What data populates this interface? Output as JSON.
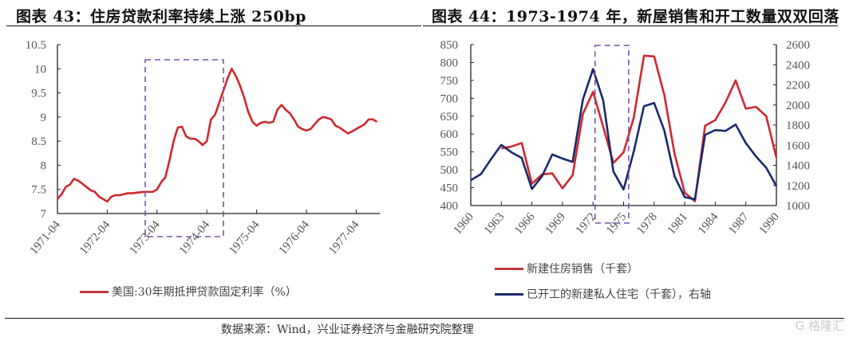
{
  "footer": {
    "source": "数据来源：Wind，兴业证券经济与金融研究院整理",
    "watermark_logo": "格隆汇"
  },
  "colors": {
    "red": "#d0282e",
    "blue": "#1a2a6c",
    "box": "#7b52ab"
  },
  "chart_data": [
    {
      "type": "line",
      "title": "图表 43：住房贷款利率持续上涨 250bp",
      "xlabel": "",
      "ylabel": "",
      "ylim": [
        7,
        10.5
      ],
      "yticks": [
        "10.5",
        "10",
        "9.5",
        "9",
        "8.5",
        "8",
        "7.5",
        "7"
      ],
      "xticks": [
        "1971-04",
        "1972-04",
        "1973-04",
        "1974-04",
        "1975-04",
        "1976-04",
        "1977-04"
      ],
      "x_unit": "months since 1971-04",
      "highlight_box": {
        "from": "1973-02",
        "to": "1974-08"
      },
      "series": [
        {
          "name": "美国:30年期抵押贷款固定利率（%）",
          "color": "#d0282e",
          "values": [
            7.3,
            7.4,
            7.55,
            7.6,
            7.72,
            7.68,
            7.62,
            7.55,
            7.48,
            7.45,
            7.35,
            7.3,
            7.25,
            7.35,
            7.38,
            7.38,
            7.4,
            7.42,
            7.42,
            7.43,
            7.44,
            7.45,
            7.45,
            7.45,
            7.5,
            7.65,
            7.75,
            8.1,
            8.5,
            8.78,
            8.8,
            8.6,
            8.55,
            8.55,
            8.5,
            8.42,
            8.5,
            8.95,
            9.05,
            9.3,
            9.55,
            9.8,
            10.0,
            9.85,
            9.65,
            9.4,
            9.1,
            8.9,
            8.82,
            8.88,
            8.9,
            8.88,
            8.9,
            9.15,
            9.25,
            9.15,
            9.08,
            8.95,
            8.8,
            8.75,
            8.72,
            8.75,
            8.85,
            8.95,
            9.0,
            8.98,
            8.95,
            8.82,
            8.78,
            8.72,
            8.66,
            8.7,
            8.75,
            8.8,
            8.85,
            8.95,
            8.95,
            8.9
          ]
        }
      ]
    },
    {
      "type": "line",
      "title": "图表 44：1973-1974 年，新屋销售和开工数量双双回落",
      "ylim": [
        400,
        850
      ],
      "y2lim": [
        1000,
        2600
      ],
      "yticks": [
        "850",
        "800",
        "750",
        "700",
        "650",
        "600",
        "550",
        "500",
        "450",
        "400"
      ],
      "y2ticks": [
        "2600",
        "2400",
        "2200",
        "2000",
        "1800",
        "1600",
        "1400",
        "1200",
        "1000"
      ],
      "xticks": [
        "1960",
        "1963",
        "1966",
        "1969",
        "1972",
        "1975",
        "1978",
        "1981",
        "1984",
        "1987",
        "1990"
      ],
      "highlight_box": {
        "from": 1972.2,
        "to": 1975.5
      },
      "series": [
        {
          "name": "新建住房销售（千套）",
          "color": "#d0282e",
          "axis": "left",
          "x": [
            1963,
            1964,
            1965,
            1966,
            1967,
            1968,
            1969,
            1970,
            1971,
            1972,
            1973,
            1974,
            1975,
            1976,
            1977,
            1978,
            1979,
            1980,
            1981,
            1982,
            1983,
            1984,
            1985,
            1986,
            1987,
            1988,
            1989,
            1990
          ],
          "values": [
            560,
            565,
            575,
            461,
            487,
            490,
            448,
            485,
            656,
            718,
            620,
            519,
            549,
            646,
            819,
            817,
            709,
            545,
            436,
            412,
            623,
            639,
            688,
            750,
            671,
            676,
            650,
            534
          ]
        },
        {
          "name": "已开工的新建私人住宅（千套），右轴",
          "color": "#1a2a6c",
          "axis": "right",
          "x": [
            1960,
            1961,
            1962,
            1963,
            1964,
            1965,
            1966,
            1967,
            1968,
            1969,
            1970,
            1971,
            1972,
            1973,
            1974,
            1975,
            1976,
            1977,
            1978,
            1979,
            1980,
            1981,
            1982,
            1983,
            1984,
            1985,
            1986,
            1987,
            1988,
            1989,
            1990
          ],
          "values": [
            1252,
            1313,
            1463,
            1603,
            1529,
            1473,
            1165,
            1292,
            1508,
            1467,
            1434,
            2052,
            2357,
            2045,
            1338,
            1160,
            1538,
            1987,
            2020,
            1745,
            1292,
            1084,
            1062,
            1703,
            1750,
            1742,
            1805,
            1621,
            1488,
            1376,
            1193
          ]
        }
      ]
    }
  ]
}
